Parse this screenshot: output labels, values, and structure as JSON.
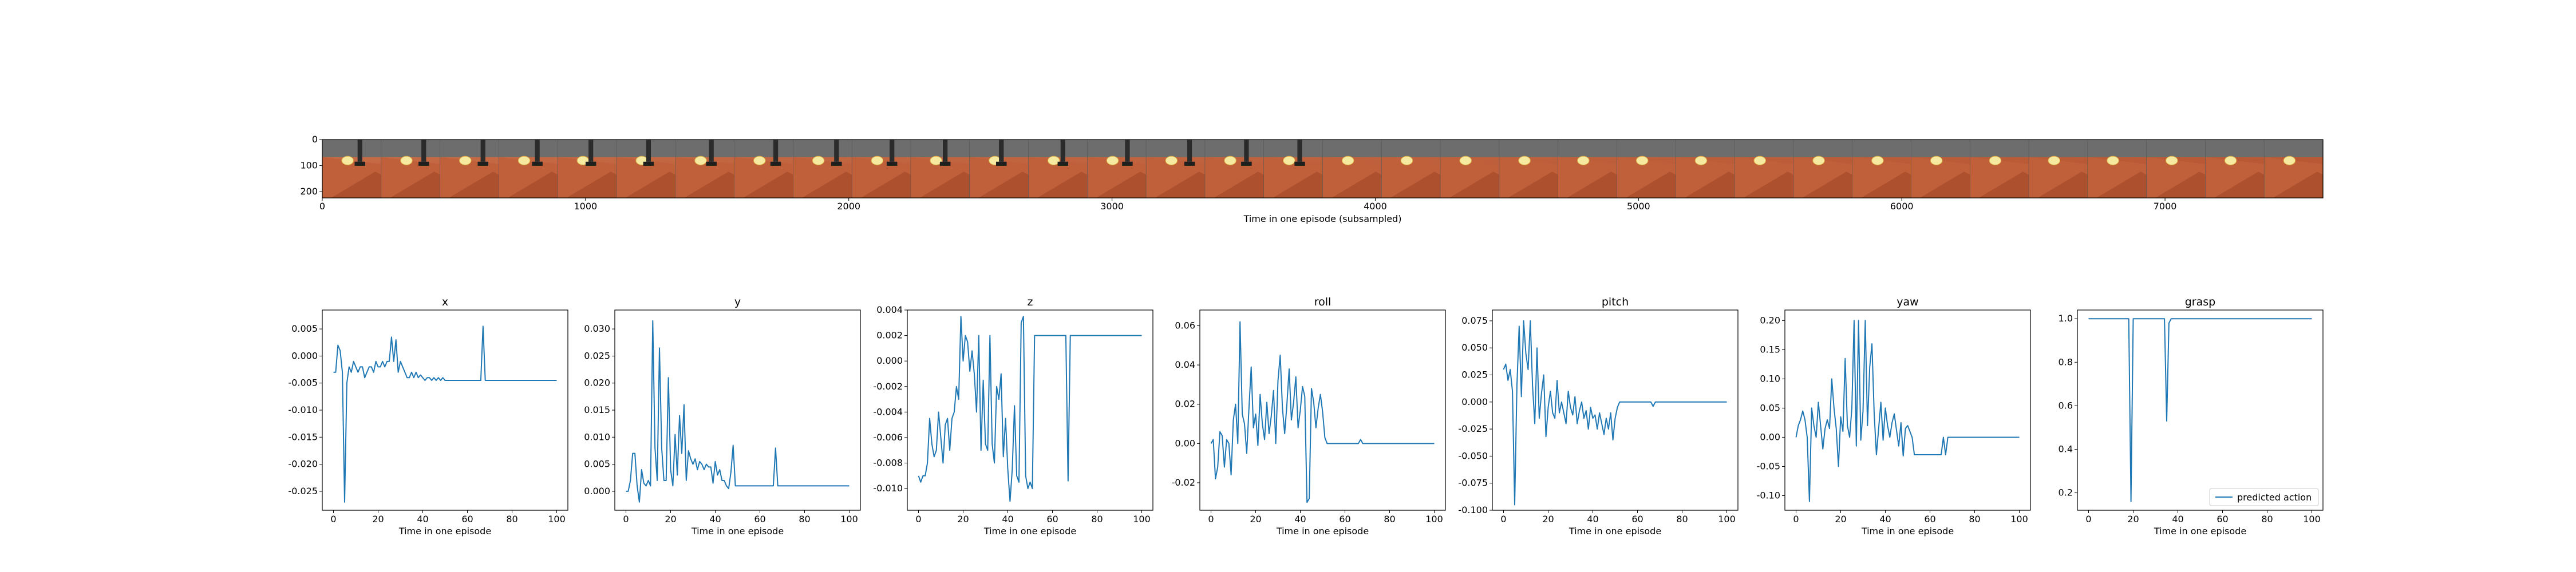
{
  "chart_data": [
    {
      "type": "image",
      "title": "",
      "xlabel": "Time in one episode (subsampled)",
      "x_ticks": [
        0,
        1000,
        2000,
        3000,
        4000,
        5000,
        6000,
        7000
      ],
      "y_ticks": [
        0,
        100,
        200
      ],
      "xlim": [
        0,
        7600
      ],
      "ylim": [
        224,
        0
      ],
      "frame_count": 34
    },
    {
      "type": "line",
      "title": "x",
      "xlabel": "Time in one episode",
      "xlim": [
        -5,
        105
      ],
      "ylim": [
        -0.0285,
        0.0085
      ],
      "x_ticks": [
        0,
        20,
        40,
        60,
        80,
        100
      ],
      "y_ticks": [
        -0.025,
        -0.02,
        -0.015,
        -0.01,
        -0.005,
        0.0,
        0.005
      ],
      "y_tick_labels": [
        "-0.025",
        "-0.020",
        "-0.015",
        "-0.010",
        "-0.005",
        "0.000",
        "0.005"
      ],
      "series": [
        {
          "name": "predicted action",
          "color": "#1f77b4",
          "x": [
            0,
            1,
            2,
            3,
            4,
            5,
            6,
            7,
            8,
            9,
            10,
            11,
            12,
            13,
            14,
            15,
            16,
            17,
            18,
            19,
            20,
            21,
            22,
            23,
            24,
            25,
            26,
            27,
            28,
            29,
            30,
            31,
            32,
            33,
            34,
            35,
            36,
            37,
            38,
            39,
            40,
            41,
            42,
            43,
            44,
            45,
            46,
            47,
            48,
            49,
            50,
            66,
            67,
            68,
            100
          ],
          "y": [
            -0.003,
            -0.003,
            0.002,
            0.001,
            -0.003,
            -0.027,
            -0.005,
            -0.002,
            -0.003,
            -0.001,
            -0.002,
            -0.003,
            -0.002,
            -0.002,
            -0.004,
            -0.003,
            -0.002,
            -0.002,
            -0.003,
            -0.001,
            -0.002,
            -0.002,
            -0.001,
            -0.002,
            -0.001,
            -0.001,
            0.0035,
            -0.001,
            0.003,
            -0.003,
            -0.001,
            -0.002,
            -0.003,
            -0.004,
            -0.004,
            -0.003,
            -0.004,
            -0.003,
            -0.004,
            -0.0035,
            -0.004,
            -0.0045,
            -0.004,
            -0.004,
            -0.0045,
            -0.004,
            -0.0045,
            -0.004,
            -0.0045,
            -0.004,
            -0.0045,
            -0.0045,
            0.0055,
            -0.0045,
            -0.0045
          ]
        }
      ]
    },
    {
      "type": "line",
      "title": "y",
      "xlabel": "Time in one episode",
      "xlim": [
        -5,
        105
      ],
      "ylim": [
        -0.0035,
        0.0335
      ],
      "x_ticks": [
        0,
        20,
        40,
        60,
        80,
        100
      ],
      "y_ticks": [
        0.0,
        0.005,
        0.01,
        0.015,
        0.02,
        0.025,
        0.03
      ],
      "y_tick_labels": [
        "0.000",
        "0.005",
        "0.010",
        "0.015",
        "0.020",
        "0.025",
        "0.030"
      ],
      "series": [
        {
          "name": "predicted action",
          "color": "#1f77b4",
          "x": [
            0,
            1,
            2,
            3,
            4,
            5,
            6,
            7,
            8,
            9,
            10,
            11,
            12,
            13,
            14,
            15,
            16,
            17,
            18,
            19,
            20,
            21,
            22,
            23,
            24,
            25,
            26,
            27,
            28,
            29,
            30,
            31,
            32,
            33,
            34,
            35,
            36,
            37,
            38,
            39,
            40,
            41,
            42,
            43,
            44,
            45,
            46,
            47,
            48,
            49,
            50,
            51,
            52,
            53,
            54,
            55,
            56,
            57,
            58,
            59,
            60,
            66,
            67,
            68,
            100
          ],
          "y": [
            0.0,
            0.0,
            0.002,
            0.007,
            0.007,
            0.001,
            -0.002,
            0.004,
            0.0015,
            0.001,
            0.002,
            0.001,
            0.0315,
            0.008,
            0.002,
            0.0265,
            0.008,
            0.002,
            0.002,
            0.021,
            0.004,
            0.001,
            0.0105,
            0.003,
            0.014,
            0.007,
            0.016,
            0.002,
            0.0075,
            0.006,
            0.005,
            0.006,
            0.004,
            0.0055,
            0.005,
            0.004,
            0.005,
            0.0045,
            0.0045,
            0.0015,
            0.0055,
            0.003,
            0.004,
            0.002,
            0.002,
            0.001,
            0.0005,
            0.0035,
            0.0085,
            0.001,
            0.001,
            0.001,
            0.001,
            0.001,
            0.001,
            0.001,
            0.001,
            0.001,
            0.001,
            0.001,
            0.001,
            0.001,
            0.008,
            0.001,
            0.001
          ]
        }
      ]
    },
    {
      "type": "line",
      "title": "z",
      "xlabel": "Time in one episode",
      "xlim": [
        -5,
        105
      ],
      "ylim": [
        -0.0117,
        0.004
      ],
      "x_ticks": [
        0,
        20,
        40,
        60,
        80,
        100
      ],
      "y_ticks": [
        -0.01,
        -0.008,
        -0.006,
        -0.004,
        -0.002,
        0.0,
        0.002,
        0.004
      ],
      "y_tick_labels": [
        "-0.010",
        "-0.008",
        "-0.006",
        "-0.004",
        "-0.002",
        "0.000",
        "0.002",
        "0.004"
      ],
      "series": [
        {
          "name": "predicted action",
          "color": "#1f77b4",
          "x": [
            0,
            1,
            2,
            3,
            4,
            5,
            6,
            7,
            8,
            9,
            10,
            11,
            12,
            13,
            14,
            15,
            16,
            17,
            18,
            19,
            20,
            21,
            22,
            23,
            24,
            25,
            26,
            27,
            28,
            29,
            30,
            31,
            32,
            33,
            34,
            35,
            36,
            37,
            38,
            39,
            40,
            41,
            42,
            43,
            44,
            45,
            46,
            47,
            48,
            49,
            50,
            51,
            52,
            53,
            54,
            55,
            56,
            57,
            58,
            59,
            60,
            61,
            62,
            63,
            64,
            65,
            66,
            67,
            68,
            100
          ],
          "y": [
            -0.009,
            -0.0095,
            -0.009,
            -0.009,
            -0.008,
            -0.0045,
            -0.0065,
            -0.0075,
            -0.007,
            -0.004,
            -0.006,
            -0.008,
            -0.005,
            -0.0045,
            -0.007,
            -0.0045,
            -0.004,
            -0.002,
            -0.003,
            0.0035,
            0.0,
            0.002,
            0.0015,
            -0.0008,
            0.0008,
            -0.001,
            -0.004,
            0.002,
            -0.007,
            -0.0015,
            -0.0065,
            -0.007,
            0.002,
            -0.0065,
            -0.008,
            -0.002,
            -0.003,
            -0.001,
            -0.0075,
            -0.0045,
            -0.0085,
            -0.011,
            -0.0085,
            -0.0035,
            -0.009,
            -0.0095,
            0.003,
            0.0035,
            -0.009,
            -0.01,
            -0.0095,
            -0.01,
            0.002,
            0.002,
            0.002,
            0.002,
            0.002,
            0.002,
            0.002,
            0.002,
            0.002,
            0.002,
            0.002,
            0.002,
            0.002,
            0.002,
            0.002,
            -0.0094,
            0.002,
            0.002
          ]
        }
      ]
    },
    {
      "type": "line",
      "title": "roll",
      "xlabel": "Time in one episode",
      "xlim": [
        -5,
        105
      ],
      "ylim": [
        -0.034,
        0.068
      ],
      "x_ticks": [
        0,
        20,
        40,
        60,
        80,
        100
      ],
      "y_ticks": [
        -0.02,
        0.0,
        0.02,
        0.04,
        0.06
      ],
      "y_tick_labels": [
        "-0.02",
        "0.00",
        "0.02",
        "0.04",
        "0.06"
      ],
      "series": [
        {
          "name": "predicted action",
          "color": "#1f77b4",
          "x": [
            0,
            1,
            2,
            3,
            4,
            5,
            6,
            7,
            8,
            9,
            10,
            11,
            12,
            13,
            14,
            15,
            16,
            17,
            18,
            19,
            20,
            21,
            22,
            23,
            24,
            25,
            26,
            27,
            28,
            29,
            30,
            31,
            32,
            33,
            34,
            35,
            36,
            37,
            38,
            39,
            40,
            41,
            42,
            43,
            44,
            45,
            46,
            47,
            48,
            49,
            50,
            51,
            52,
            53,
            54,
            55,
            56,
            57,
            58,
            59,
            60,
            61,
            62,
            63,
            64,
            65,
            66,
            67,
            68,
            100
          ],
          "y": [
            0.0,
            0.002,
            -0.018,
            -0.012,
            0.006,
            0.004,
            -0.012,
            0.002,
            0.0,
            -0.016,
            0.012,
            0.02,
            0.0,
            0.062,
            0.015,
            0.01,
            -0.005,
            0.018,
            0.039,
            0.008,
            0.015,
            -0.001,
            0.025,
            0.01,
            0.002,
            0.021,
            0.005,
            0.014,
            0.027,
            0.0,
            0.032,
            0.045,
            0.018,
            0.005,
            0.02,
            0.038,
            0.012,
            0.021,
            0.034,
            0.008,
            0.017,
            0.029,
            0.024,
            -0.03,
            -0.028,
            0.028,
            0.021,
            0.008,
            0.018,
            0.025,
            0.016,
            0.003,
            0.0,
            0.0,
            0.0,
            0.0,
            0.0,
            0.0,
            0.0,
            0.0,
            0.0,
            0.0,
            0.0,
            0.0,
            0.0,
            0.0,
            0.0,
            0.002,
            0.0,
            0.0
          ]
        }
      ]
    },
    {
      "type": "line",
      "title": "pitch",
      "xlabel": "Time in one episode",
      "xlim": [
        -5,
        105
      ],
      "ylim": [
        -0.1,
        0.085
      ],
      "x_ticks": [
        0,
        20,
        40,
        60,
        80,
        100
      ],
      "y_ticks": [
        -0.1,
        -0.075,
        -0.05,
        -0.025,
        0.0,
        0.025,
        0.05,
        0.075
      ],
      "y_tick_labels": [
        "-0.100",
        "-0.075",
        "-0.050",
        "-0.025",
        "0.000",
        "0.025",
        "0.050",
        "0.075"
      ],
      "series": [
        {
          "name": "predicted action",
          "color": "#1f77b4",
          "x": [
            0,
            1,
            2,
            3,
            4,
            5,
            6,
            7,
            8,
            9,
            10,
            11,
            12,
            13,
            14,
            15,
            16,
            17,
            18,
            19,
            20,
            21,
            22,
            23,
            24,
            25,
            26,
            27,
            28,
            29,
            30,
            31,
            32,
            33,
            34,
            35,
            36,
            37,
            38,
            39,
            40,
            41,
            42,
            43,
            44,
            45,
            46,
            47,
            48,
            49,
            50,
            51,
            52,
            53,
            54,
            55,
            56,
            57,
            58,
            59,
            60,
            66,
            67,
            68,
            100
          ],
          "y": [
            0.03,
            0.035,
            0.02,
            0.03,
            0.01,
            -0.095,
            0.015,
            0.07,
            0.005,
            0.075,
            0.045,
            0.03,
            0.075,
            0.015,
            -0.02,
            0.05,
            -0.015,
            0.008,
            0.025,
            -0.032,
            -0.005,
            0.01,
            -0.01,
            -0.015,
            0.02,
            -0.01,
            0.0,
            -0.01,
            -0.02,
            0.01,
            -0.005,
            -0.012,
            0.005,
            -0.02,
            -0.008,
            0.0,
            -0.015,
            -0.008,
            -0.025,
            -0.005,
            -0.015,
            -0.012,
            -0.025,
            -0.01,
            -0.02,
            -0.03,
            -0.015,
            -0.025,
            -0.01,
            -0.035,
            -0.015,
            -0.005,
            0.0,
            0.0,
            0.0,
            0.0,
            0.0,
            0.0,
            0.0,
            0.0,
            0.0,
            0.0,
            -0.004,
            0.0,
            0.0
          ]
        }
      ]
    },
    {
      "type": "line",
      "title": "yaw",
      "xlabel": "Time in one episode",
      "xlim": [
        -5,
        105
      ],
      "ylim": [
        -0.125,
        0.218
      ],
      "x_ticks": [
        0,
        20,
        40,
        60,
        80,
        100
      ],
      "y_ticks": [
        -0.1,
        -0.05,
        0.0,
        0.05,
        0.1,
        0.15,
        0.2
      ],
      "y_tick_labels": [
        "-0.10",
        "-0.05",
        "0.00",
        "0.05",
        "0.10",
        "0.15",
        "0.20"
      ],
      "series": [
        {
          "name": "predicted action",
          "color": "#1f77b4",
          "x": [
            0,
            1,
            2,
            3,
            4,
            5,
            6,
            7,
            8,
            9,
            10,
            11,
            12,
            13,
            14,
            15,
            16,
            17,
            18,
            19,
            20,
            21,
            22,
            23,
            24,
            25,
            26,
            27,
            28,
            29,
            30,
            31,
            32,
            33,
            34,
            35,
            36,
            37,
            38,
            39,
            40,
            41,
            42,
            43,
            44,
            45,
            46,
            47,
            48,
            49,
            50,
            51,
            52,
            53,
            54,
            55,
            56,
            57,
            58,
            59,
            60,
            61,
            62,
            63,
            64,
            65,
            66,
            67,
            68,
            100
          ],
          "y": [
            0.0,
            0.02,
            0.03,
            0.045,
            0.03,
            0.0,
            -0.11,
            0.05,
            0.02,
            0.0,
            0.06,
            0.02,
            -0.02,
            0.015,
            0.03,
            0.015,
            0.1,
            0.05,
            0.015,
            -0.05,
            0.035,
            0.01,
            0.135,
            0.02,
            0.0,
            0.05,
            0.2,
            -0.015,
            0.2,
            -0.005,
            0.045,
            0.2,
            0.02,
            0.12,
            0.16,
            0.04,
            -0.03,
            0.015,
            0.06,
            -0.005,
            0.05,
            0.02,
            0.0,
            0.025,
            0.04,
            0.012,
            -0.015,
            0.025,
            -0.032,
            0.015,
            0.02,
            0.01,
            0.0,
            -0.03,
            -0.03,
            -0.03,
            -0.03,
            -0.03,
            -0.03,
            -0.03,
            -0.03,
            -0.03,
            -0.03,
            -0.03,
            -0.03,
            -0.03,
            0.0,
            -0.03,
            0.0,
            0.0
          ]
        }
      ]
    },
    {
      "type": "line",
      "title": "grasp",
      "xlabel": "Time in one episode",
      "xlim": [
        -5,
        105
      ],
      "ylim": [
        0.12,
        1.04
      ],
      "x_ticks": [
        0,
        20,
        40,
        60,
        80,
        100
      ],
      "y_ticks": [
        0.2,
        0.4,
        0.6,
        0.8,
        1.0
      ],
      "y_tick_labels": [
        "0.2",
        "0.4",
        "0.6",
        "0.8",
        "1.0"
      ],
      "legend": {
        "label": "predicted action",
        "location": "lower-right"
      },
      "series": [
        {
          "name": "predicted action",
          "color": "#1f77b4",
          "x": [
            0,
            18,
            19,
            20,
            34,
            35,
            36,
            37,
            100
          ],
          "y": [
            1.0,
            1.0,
            0.16,
            1.0,
            1.0,
            0.53,
            0.98,
            1.0,
            1.0
          ]
        }
      ]
    }
  ]
}
